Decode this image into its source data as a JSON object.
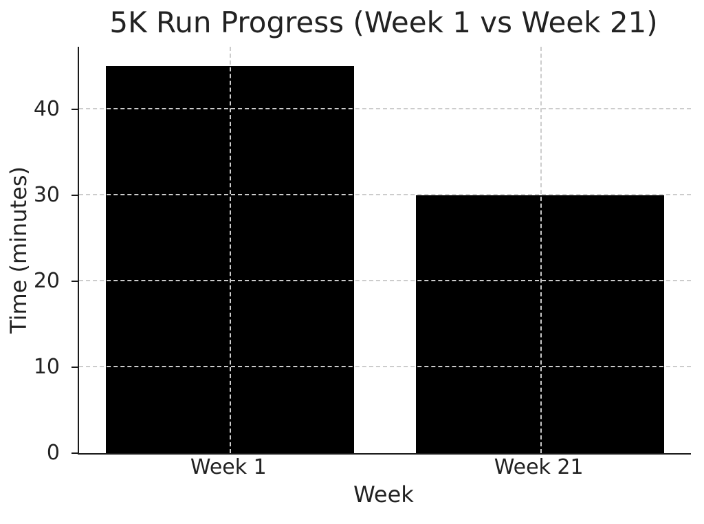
{
  "chart_data": {
    "type": "bar",
    "title": "5K Run Progress (Week 1 vs Week 21)",
    "xlabel": "Week",
    "ylabel": "Time (minutes)",
    "categories": [
      "Week 1",
      "Week 21"
    ],
    "values": [
      45,
      30
    ],
    "yticks": [
      0,
      10,
      20,
      30,
      40
    ],
    "ylim": [
      0,
      47.25
    ],
    "xlim": [
      -0.486,
      1.486
    ],
    "bar_width": 0.8,
    "grid": {
      "visible": true,
      "style": "dashed",
      "over_bars": true,
      "vertical_at_bar_centers": true
    },
    "legend": "none",
    "colors": {
      "bar": "#000000",
      "grid": "#cccccc",
      "text": "#222222",
      "spine": "#1a1a1a",
      "background": "#ffffff"
    }
  }
}
